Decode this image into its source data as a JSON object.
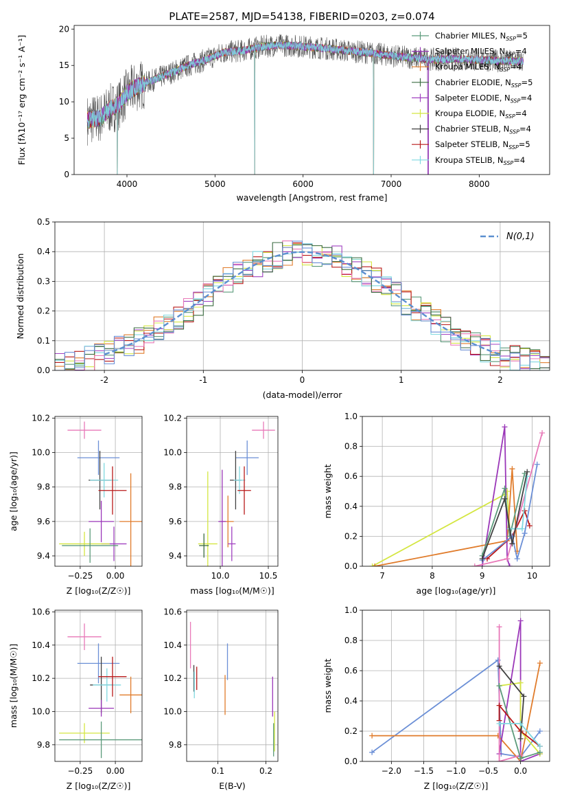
{
  "colors": {
    "Chabrier MILES": "#5b9a7a",
    "Salpeter MILES": "#9a36b8",
    "Kroupa MILES": "#e07b2a",
    "Chabrier ELODIE": "#3a6b40",
    "Salpeter ELODIE": "#a040c0",
    "Kroupa ELODIE": "#d4e640",
    "Chabrier STELIB": "#404040",
    "Salpeter STELIB": "#b81818",
    "Kroupa STELIB": "#7fd8e0"
  },
  "chart_data": [
    {
      "id": "spectrum",
      "type": "line",
      "title": "PLATE=2587, MJD=54138, FIBERID=0203, z=0.074",
      "xlabel": "wavelength [Angstrom, rest frame]",
      "ylabel": "Flux [fλ10⁻¹⁷ erg cm⁻² s⁻¹ A⁻¹]",
      "xlim": [
        3400,
        8800
      ],
      "ylim": [
        0,
        20.5
      ],
      "xticks": [
        4000,
        5000,
        6000,
        7000,
        8000
      ],
      "yticks": [
        0,
        5,
        10,
        15,
        20
      ],
      "legend_position": "top-right",
      "legend": [
        {
          "name": "Chabrier MILES, N",
          "sub": "SSP",
          "suffix": "=5",
          "color": "#5b9a7a"
        },
        {
          "name": "Salpeter MILES, N",
          "sub": "SSP",
          "suffix": "=4",
          "color": "#9a36b8"
        },
        {
          "name": "Kroupa MILES, N",
          "sub": "SSP",
          "suffix": "=4",
          "color": "#e07b2a"
        },
        {
          "name": "Chabrier ELODIE, N",
          "sub": "SSP",
          "suffix": "=5",
          "color": "#3a6b40"
        },
        {
          "name": "Salpeter ELODIE, N",
          "sub": "SSP",
          "suffix": "=4",
          "color": "#a040c0"
        },
        {
          "name": "Kroupa ELODIE, N",
          "sub": "SSP",
          "suffix": "=4",
          "color": "#d4e640"
        },
        {
          "name": "Chabrier STELIB, N",
          "sub": "SSP",
          "suffix": "=4",
          "color": "#404040"
        },
        {
          "name": "Salpeter STELIB, N",
          "sub": "SSP",
          "suffix": "=5",
          "color": "#b81818"
        },
        {
          "name": "Kroupa STELIB, N",
          "sub": "SSP",
          "suffix": "=4",
          "color": "#7fd8e0"
        }
      ],
      "continuum": {
        "x": [
          3550,
          3700,
          3800,
          3900,
          4000,
          4100,
          4200,
          4300,
          4500,
          4700,
          4900,
          5100,
          5300,
          5500,
          5700,
          5900,
          6100,
          6300,
          6500,
          6700,
          6900,
          7100,
          7300,
          7500,
          7700,
          7900,
          8100,
          8300,
          8500
        ],
        "y": [
          7.5,
          7.8,
          9.0,
          9.5,
          11.2,
          12.0,
          12.5,
          13.0,
          14.0,
          15.0,
          15.8,
          16.8,
          17.0,
          17.5,
          17.8,
          17.7,
          17.5,
          17.3,
          17.0,
          16.8,
          16.5,
          16.2,
          16.0,
          15.8,
          15.9,
          15.8,
          15.7,
          15.6,
          15.6
        ]
      },
      "dips": [
        {
          "x": 3890,
          "y": 0
        },
        {
          "x": 5450,
          "y": 0
        },
        {
          "x": 6800,
          "y": 0
        },
        {
          "x": 7420,
          "y": 0
        }
      ]
    },
    {
      "id": "residuals",
      "type": "bar",
      "xlabel": "(data-model)/error",
      "ylabel": "Normed distribution",
      "xlim": [
        -2.5,
        2.5
      ],
      "ylim": [
        0,
        0.5
      ],
      "xticks": [
        -2,
        -1,
        0,
        1,
        2
      ],
      "yticks": [
        0.0,
        0.1,
        0.2,
        0.3,
        0.4,
        0.5
      ],
      "legend_label": "N(0,1)",
      "legend_position": "top-right",
      "bin_width": 0.1,
      "series_colors": [
        "#5b9a7a",
        "#e07b2a",
        "#a040c0",
        "#d4e640",
        "#b81818",
        "#e878b8",
        "#7fd8e0",
        "#3a6b40",
        "#6b8fd6"
      ]
    },
    {
      "id": "age-vs-Z",
      "type": "scatter",
      "xlabel": "Z [log₁₀(Z/Z☉)]",
      "ylabel": "age  [log₁₀(age/yr)]",
      "xlim": [
        -0.43,
        0.19
      ],
      "ylim": [
        9.34,
        10.21
      ],
      "xticks": [
        -0.25,
        0.0
      ],
      "xtick_labels": [
        "−0.25",
        "0.00"
      ],
      "yticks": [
        9.4,
        9.6,
        9.8,
        10.0,
        10.2
      ],
      "points": [
        {
          "x": -0.22,
          "y": 10.13,
          "xerr": 0.12,
          "yerr": 0.05,
          "color": "#e878b8"
        },
        {
          "x": -0.12,
          "y": 9.97,
          "xerr": 0.15,
          "yerr": 0.1,
          "color": "#6b8fd6"
        },
        {
          "x": -0.11,
          "y": 9.84,
          "xerr": 0.08,
          "yerr": 0.17,
          "color": "#404040"
        },
        {
          "x": -0.08,
          "y": 9.84,
          "xerr": 0.1,
          "yerr": 0.1,
          "color": "#7fd8e0"
        },
        {
          "x": -0.02,
          "y": 9.78,
          "xerr": 0.1,
          "yerr": 0.14,
          "color": "#b81818"
        },
        {
          "x": 0.11,
          "y": 9.6,
          "xerr": 0.08,
          "yerr": 0.28,
          "color": "#e07b2a"
        },
        {
          "x": -0.1,
          "y": 9.6,
          "xerr": 0.09,
          "yerr": 0.12,
          "color": "#9a36b8"
        },
        {
          "x": -0.01,
          "y": 9.47,
          "xerr": 0.09,
          "yerr": 0.1,
          "color": "#a040c0"
        },
        {
          "x": -0.22,
          "y": 9.47,
          "xerr": 0.18,
          "yerr": 0.07,
          "color": "#d4e640"
        },
        {
          "x": -0.18,
          "y": 9.46,
          "xerr": 0.2,
          "yerr": 0.1,
          "color": "#5b9a7a"
        }
      ]
    },
    {
      "id": "age-vs-mass",
      "type": "scatter",
      "xlabel": "mass [log₁₀(M/M☉)]",
      "ylabel": "",
      "xlim": [
        9.65,
        10.6
      ],
      "ylim": [
        9.34,
        10.21
      ],
      "xticks": [
        10.0,
        10.5
      ],
      "xtick_labels": [
        "10.0",
        "10.5"
      ],
      "yticks": [
        9.4,
        9.6,
        9.8,
        10.0,
        10.2
      ],
      "points": [
        {
          "x": 10.45,
          "y": 10.13,
          "xerr": 0.12,
          "yerr": 0.05,
          "color": "#e878b8"
        },
        {
          "x": 10.28,
          "y": 9.97,
          "xerr": 0.12,
          "yerr": 0.1,
          "color": "#6b8fd6"
        },
        {
          "x": 10.16,
          "y": 9.84,
          "xerr": 0.06,
          "yerr": 0.17,
          "color": "#404040"
        },
        {
          "x": 10.2,
          "y": 9.84,
          "xerr": 0.06,
          "yerr": 0.08,
          "color": "#7fd8e0"
        },
        {
          "x": 10.25,
          "y": 9.78,
          "xerr": 0.07,
          "yerr": 0.14,
          "color": "#b81818"
        },
        {
          "x": 10.08,
          "y": 9.6,
          "xerr": 0.06,
          "yerr": 0.15,
          "color": "#e07b2a"
        },
        {
          "x": 10.02,
          "y": 9.6,
          "xerr": 0.04,
          "yerr": 0.3,
          "color": "#9a36b8"
        },
        {
          "x": 10.12,
          "y": 9.47,
          "xerr": 0.04,
          "yerr": 0.1,
          "color": "#a040c0"
        },
        {
          "x": 9.87,
          "y": 9.47,
          "xerr": 0.1,
          "yerr": 0.42,
          "color": "#d4e640"
        },
        {
          "x": 9.83,
          "y": 9.46,
          "xerr": 0.05,
          "yerr": 0.07,
          "color": "#3a6b40"
        }
      ]
    },
    {
      "id": "mass-weight-vs-age",
      "type": "line",
      "xlabel": "age  [log₁₀(age/yr)]",
      "ylabel": "mass weight",
      "xlim": [
        6.6,
        10.35
      ],
      "ylim": [
        0,
        1.0
      ],
      "xticks": [
        7,
        8,
        9,
        10
      ],
      "yticks": [
        0.0,
        0.2,
        0.4,
        0.6,
        0.8,
        1.0
      ],
      "series": [
        {
          "color": "#d4e640",
          "x": [
            6.8,
            9.45,
            9.5,
            9.55
          ],
          "y": [
            0.0,
            0.48,
            0.5,
            0.25
          ]
        },
        {
          "color": "#e07b2a",
          "x": [
            6.85,
            9.5,
            9.6,
            9.7
          ],
          "y": [
            0.0,
            0.17,
            0.65,
            0.1
          ]
        },
        {
          "color": "#9a36b8",
          "x": [
            9.0,
            9.45,
            9.5,
            9.55
          ],
          "y": [
            0.0,
            0.93,
            0.05,
            0.0
          ]
        },
        {
          "color": "#5b9a7a",
          "x": [
            9.0,
            9.45,
            9.55,
            9.85
          ],
          "y": [
            0.07,
            0.52,
            0.2,
            0.62
          ]
        },
        {
          "color": "#b81818",
          "x": [
            9.1,
            9.6,
            9.85,
            9.95
          ],
          "y": [
            0.05,
            0.2,
            0.37,
            0.27
          ]
        },
        {
          "color": "#e878b8",
          "x": [
            8.85,
            9.5,
            10.2
          ],
          "y": [
            0.0,
            0.05,
            0.89
          ]
        },
        {
          "color": "#6b8fd6",
          "x": [
            9.0,
            9.6,
            9.7,
            9.85,
            10.1
          ],
          "y": [
            0.04,
            0.2,
            0.05,
            0.22,
            0.68
          ]
        },
        {
          "color": "#7fd8e0",
          "x": [
            9.55,
            9.8,
            9.9
          ],
          "y": [
            0.25,
            0.25,
            0.6
          ]
        },
        {
          "color": "#404040",
          "x": [
            9.0,
            9.45,
            9.6,
            9.9
          ],
          "y": [
            0.05,
            0.45,
            0.15,
            0.63
          ]
        }
      ]
    },
    {
      "id": "mass-vs-Z",
      "type": "scatter",
      "xlabel": "Z [log₁₀(Z/Z☉)]",
      "ylabel": "mass [log₁₀(M/M☉)]",
      "xlim": [
        -0.43,
        0.19
      ],
      "ylim": [
        9.7,
        10.61
      ],
      "xticks": [
        -0.25,
        0.0
      ],
      "xtick_labels": [
        "−0.25",
        "0.00"
      ],
      "yticks": [
        9.8,
        10.0,
        10.2,
        10.4,
        10.6
      ],
      "points": [
        {
          "x": -0.22,
          "y": 10.45,
          "xerr": 0.12,
          "yerr": 0.08,
          "color": "#e878b8"
        },
        {
          "x": -0.12,
          "y": 10.29,
          "xerr": 0.15,
          "yerr": 0.12,
          "color": "#6b8fd6"
        },
        {
          "x": -0.1,
          "y": 10.16,
          "xerr": 0.08,
          "yerr": 0.17,
          "color": "#404040"
        },
        {
          "x": -0.06,
          "y": 10.16,
          "xerr": 0.1,
          "yerr": 0.1,
          "color": "#7fd8e0"
        },
        {
          "x": -0.02,
          "y": 10.21,
          "xerr": 0.1,
          "yerr": 0.12,
          "color": "#b81818"
        },
        {
          "x": 0.11,
          "y": 10.1,
          "xerr": 0.08,
          "yerr": 0.11,
          "color": "#e07b2a"
        },
        {
          "x": -0.1,
          "y": 10.02,
          "xerr": 0.09,
          "yerr": 0.05,
          "color": "#9a36b8"
        },
        {
          "x": -0.22,
          "y": 9.87,
          "xerr": 0.18,
          "yerr": 0.06,
          "color": "#d4e640"
        },
        {
          "x": -0.1,
          "y": 9.83,
          "xerr": 0.3,
          "yerr": 0.11,
          "color": "#5b9a7a"
        }
      ]
    },
    {
      "id": "mass-vs-EBV",
      "type": "scatter",
      "xlabel": "E(B-V)",
      "ylabel": "",
      "xlim": [
        0.035,
        0.225
      ],
      "ylim": [
        9.7,
        10.61
      ],
      "xticks": [
        0.1,
        0.2
      ],
      "xtick_labels": [
        "0.1",
        "0.2"
      ],
      "yticks": [
        9.8,
        10.0,
        10.2,
        10.4,
        10.6
      ],
      "points": [
        {
          "x": 0.043,
          "y": 10.4,
          "xerr": 0.0,
          "yerr": 0.14,
          "color": "#e878b8"
        },
        {
          "x": 0.05,
          "y": 10.2,
          "xerr": 0.0,
          "yerr": 0.08,
          "color": "#404040"
        },
        {
          "x": 0.051,
          "y": 10.16,
          "xerr": 0.0,
          "yerr": 0.08,
          "color": "#7fd8e0"
        },
        {
          "x": 0.056,
          "y": 10.2,
          "xerr": 0.0,
          "yerr": 0.07,
          "color": "#b81818"
        },
        {
          "x": 0.12,
          "y": 10.3,
          "xerr": 0.0,
          "yerr": 0.11,
          "color": "#6b8fd6"
        },
        {
          "x": 0.115,
          "y": 10.1,
          "xerr": 0.0,
          "yerr": 0.12,
          "color": "#e07b2a"
        },
        {
          "x": 0.214,
          "y": 10.09,
          "xerr": 0.0,
          "yerr": 0.12,
          "color": "#9a36b8"
        },
        {
          "x": 0.218,
          "y": 9.88,
          "xerr": 0.0,
          "yerr": 0.12,
          "color": "#d4e640"
        },
        {
          "x": 0.216,
          "y": 9.83,
          "xerr": 0.0,
          "yerr": 0.1,
          "color": "#5b9a7a"
        }
      ]
    },
    {
      "id": "mass-weight-vs-Z",
      "type": "line",
      "xlabel": "Z [log₁₀(Z/Z☉)]",
      "ylabel": "mass weight",
      "xlim": [
        -2.45,
        0.45
      ],
      "ylim": [
        0,
        1.0
      ],
      "xticks": [
        -2.0,
        -1.5,
        -1.0,
        -0.5,
        0.0
      ],
      "xtick_labels": [
        "−2.0",
        "−1.5",
        "−1.0",
        "−0.5",
        "0.0"
      ],
      "yticks": [
        0.0,
        0.2,
        0.4,
        0.6,
        0.8,
        1.0
      ],
      "series": [
        {
          "color": "#6b8fd6",
          "x": [
            -2.3,
            -0.35,
            -0.3,
            0.0,
            0.3
          ],
          "y": [
            0.06,
            0.67,
            0.05,
            0.03,
            0.2
          ]
        },
        {
          "color": "#e07b2a",
          "x": [
            -2.3,
            -0.35,
            0.0,
            0.3
          ],
          "y": [
            0.17,
            0.17,
            0.0,
            0.65
          ]
        },
        {
          "color": "#9a36b8",
          "x": [
            -0.33,
            0.0,
            0.0,
            0.3
          ],
          "y": [
            0.05,
            0.93,
            0.0,
            0.05
          ]
        },
        {
          "color": "#e878b8",
          "x": [
            -0.33,
            -0.33,
            0.0
          ],
          "y": [
            0.89,
            0.0,
            0.04
          ]
        },
        {
          "color": "#d4e640",
          "x": [
            -0.33,
            0.0,
            0.0,
            0.3
          ],
          "y": [
            0.5,
            0.52,
            0.2,
            0.05
          ]
        },
        {
          "color": "#5b9a7a",
          "x": [
            -0.33,
            0.0,
            0.3
          ],
          "y": [
            0.5,
            0.02,
            0.06
          ]
        },
        {
          "color": "#b81818",
          "x": [
            -0.33,
            -0.33,
            0.0,
            0.3
          ],
          "y": [
            0.27,
            0.37,
            0.2,
            0.1
          ]
        },
        {
          "color": "#404040",
          "x": [
            -0.33,
            0.05,
            0.0
          ],
          "y": [
            0.63,
            0.43,
            0.15
          ]
        },
        {
          "color": "#7fd8e0",
          "x": [
            -0.33,
            0.0,
            0.3
          ],
          "y": [
            0.25,
            0.25,
            0.1
          ]
        }
      ]
    }
  ]
}
